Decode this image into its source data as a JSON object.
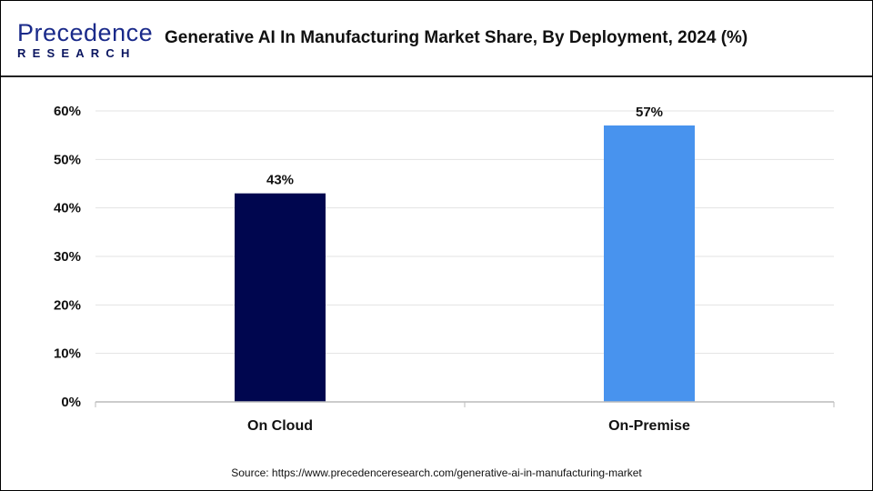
{
  "logo": {
    "line1": "Precedence",
    "line2": "RESEARCH"
  },
  "title": "Generative AI In Manufacturing Market Share, By Deployment, 2024 (%)",
  "source": "Source: https://www.precedenceresearch.com/generative-ai-in-manufacturing-market",
  "chart_data": {
    "type": "bar",
    "title": "Generative AI In Manufacturing Market Share, By Deployment, 2024 (%)",
    "categories": [
      "On Cloud",
      "On-Premise"
    ],
    "values": [
      43,
      57
    ],
    "data_labels": [
      "43%",
      "57%"
    ],
    "colors": [
      "#00064f",
      "#4893ee"
    ],
    "xlabel": "",
    "ylabel": "",
    "ylim": [
      0,
      60
    ],
    "yticks": [
      "0%",
      "10%",
      "20%",
      "30%",
      "40%",
      "50%",
      "60%"
    ],
    "grid": true,
    "legend": "none"
  }
}
